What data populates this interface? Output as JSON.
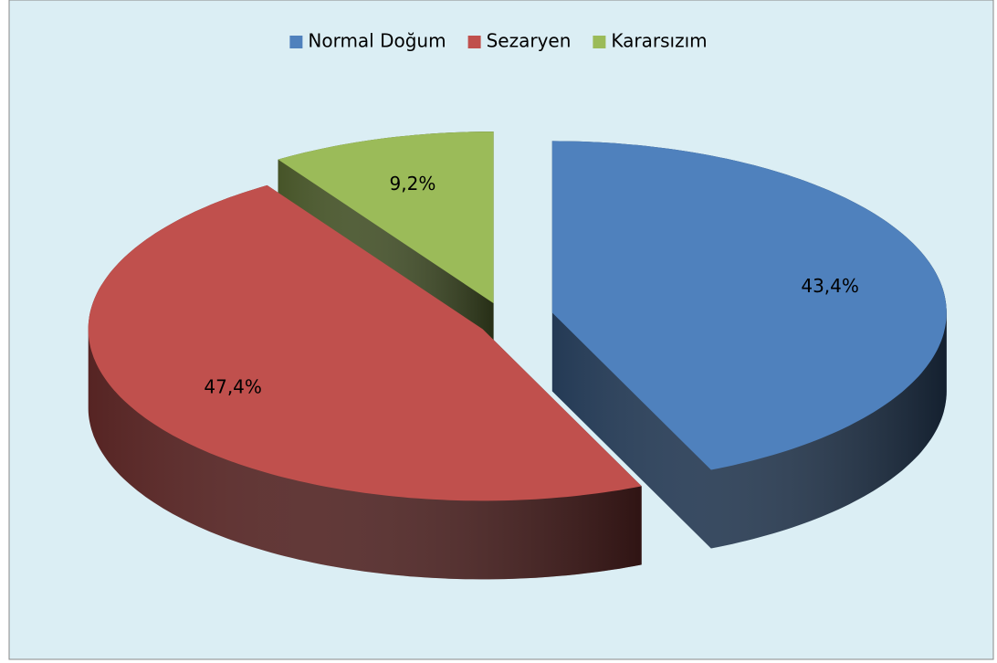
{
  "chart_data": {
    "type": "pie",
    "categories": [
      "Normal Doğum",
      "Sezaryen",
      "Kararsızım"
    ],
    "values": [
      43.4,
      47.4,
      9.2
    ],
    "value_labels": [
      "43,4%",
      "47,4%",
      "9,2%"
    ],
    "colors": [
      "#4f81bd",
      "#c0504d",
      "#9bbb59"
    ],
    "legend": "top"
  }
}
